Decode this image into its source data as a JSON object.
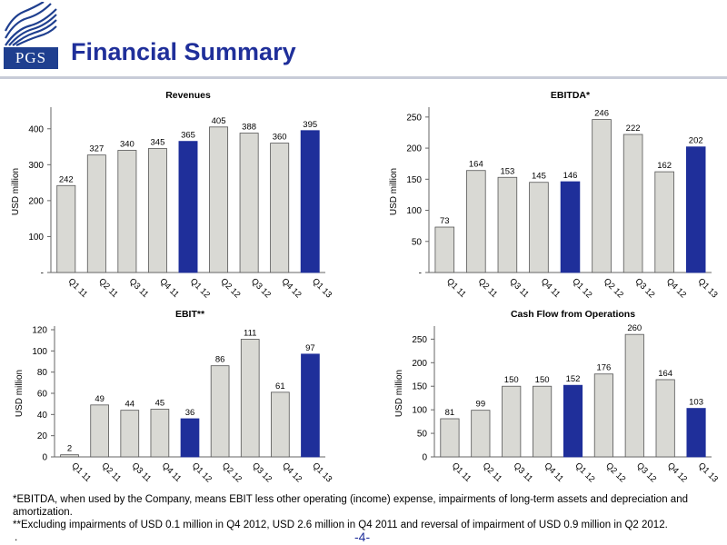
{
  "header": {
    "logo_text": "PGS",
    "title": "Financial Summary"
  },
  "colors": {
    "bar_gray": "#d9d9d4",
    "bar_highlight": "#1f2f9a",
    "title_blue": "#1f2f9a"
  },
  "chart_data": [
    {
      "type": "bar",
      "title": "Revenues",
      "ylabel": "USD million",
      "categories": [
        "Q1 11",
        "Q2 11",
        "Q3 11",
        "Q4 11",
        "Q1 12",
        "Q2 12",
        "Q3 12",
        "Q4 12",
        "Q1 13"
      ],
      "values": [
        242,
        327,
        340,
        345,
        365,
        405,
        388,
        360,
        395
      ],
      "highlight": [
        4,
        8
      ],
      "ylim": [
        0,
        450
      ],
      "yticks": [
        0,
        100,
        200,
        300,
        400
      ],
      "ytick_labels": [
        "-",
        "100",
        "200",
        "300",
        "400"
      ],
      "grid": false
    },
    {
      "type": "bar",
      "title": "EBITDA*",
      "ylabel": "USD million",
      "categories": [
        "Q1 11",
        "Q2 11",
        "Q3 11",
        "Q4 11",
        "Q1 12",
        "Q2 12",
        "Q3 12",
        "Q4 12",
        "Q1 13"
      ],
      "values": [
        73,
        164,
        153,
        145,
        146,
        246,
        222,
        162,
        202
      ],
      "highlight": [
        4,
        8
      ],
      "ylim": [
        0,
        260
      ],
      "yticks": [
        0,
        50,
        100,
        150,
        200,
        250
      ],
      "ytick_labels": [
        "-",
        "50",
        "100",
        "150",
        "200",
        "250"
      ],
      "grid": false
    },
    {
      "type": "bar",
      "title": "EBIT**",
      "ylabel": "USD million",
      "categories": [
        "Q1 11",
        "Q2 11",
        "Q3 11",
        "Q4 11",
        "Q1 12",
        "Q2 12",
        "Q3 12",
        "Q4 12",
        "Q1 13"
      ],
      "values": [
        2,
        49,
        44,
        45,
        36,
        86,
        111,
        61,
        97
      ],
      "highlight": [
        4,
        8
      ],
      "ylim": [
        0,
        120
      ],
      "yticks": [
        0,
        20,
        40,
        60,
        80,
        100,
        120
      ],
      "ytick_labels": [
        "0",
        "20",
        "40",
        "60",
        "80",
        "100",
        "120"
      ],
      "grid": false
    },
    {
      "type": "bar",
      "title": "Cash Flow from Operations",
      "ylabel": "USD million",
      "categories": [
        "Q1 11",
        "Q2 11",
        "Q3 11",
        "Q4 11",
        "Q1 12",
        "Q2 12",
        "Q3 12",
        "Q4 12",
        "Q1 13"
      ],
      "values": [
        81,
        99,
        150,
        150,
        152,
        176,
        260,
        164,
        103
      ],
      "highlight": [
        4,
        8
      ],
      "ylim": [
        0,
        270
      ],
      "yticks": [
        0,
        50,
        100,
        150,
        200,
        250
      ],
      "ytick_labels": [
        "0",
        "50",
        "100",
        "150",
        "200",
        "250"
      ],
      "grid": false
    }
  ],
  "footnotes": {
    "ebitda": "*EBITDA, when used by the Company, means EBIT less other operating (income) expense, impairments of long-term assets and depreciation and amortization.",
    "ebit": "**Excluding impairments of USD 0.1 million in Q4 2012, USD 2.6 million in Q4 2011 and reversal of impairment of USD 0.9 million in Q2 2012.",
    "dot": "."
  },
  "page_number": "-4-"
}
